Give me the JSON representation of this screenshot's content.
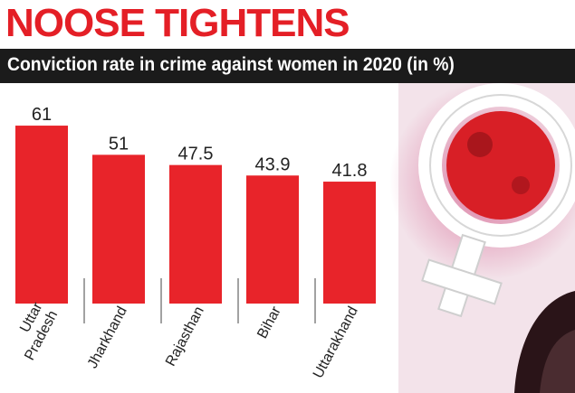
{
  "header": {
    "headline": "NOOSE TIGHTENS",
    "subtitle": "Conviction rate in crime against women in 2020 (in %)"
  },
  "colors": {
    "accent": "#e41f26",
    "bar": "#e8242a",
    "band": "#1b1b1b",
    "text": "#222222"
  },
  "chart_data": {
    "type": "bar",
    "title": "Conviction rate in crime against women in 2020 (in %)",
    "categories": [
      "Uttar Pradesh",
      "Jharkhand",
      "Rajasthan",
      "Bihar",
      "Uttarakhand"
    ],
    "category_lines": [
      [
        "Uttar",
        "Pradesh"
      ],
      [
        "Jharkhand"
      ],
      [
        "Rajasthan"
      ],
      [
        "Bihar"
      ],
      [
        "Uttarakhand"
      ]
    ],
    "value_labels": [
      "61",
      "51",
      "47.5",
      "43.9",
      "41.8"
    ],
    "values": [
      61,
      51,
      47.5,
      43.9,
      41.8
    ],
    "ylim": [
      0,
      70
    ],
    "grid": false,
    "legend": "none"
  }
}
